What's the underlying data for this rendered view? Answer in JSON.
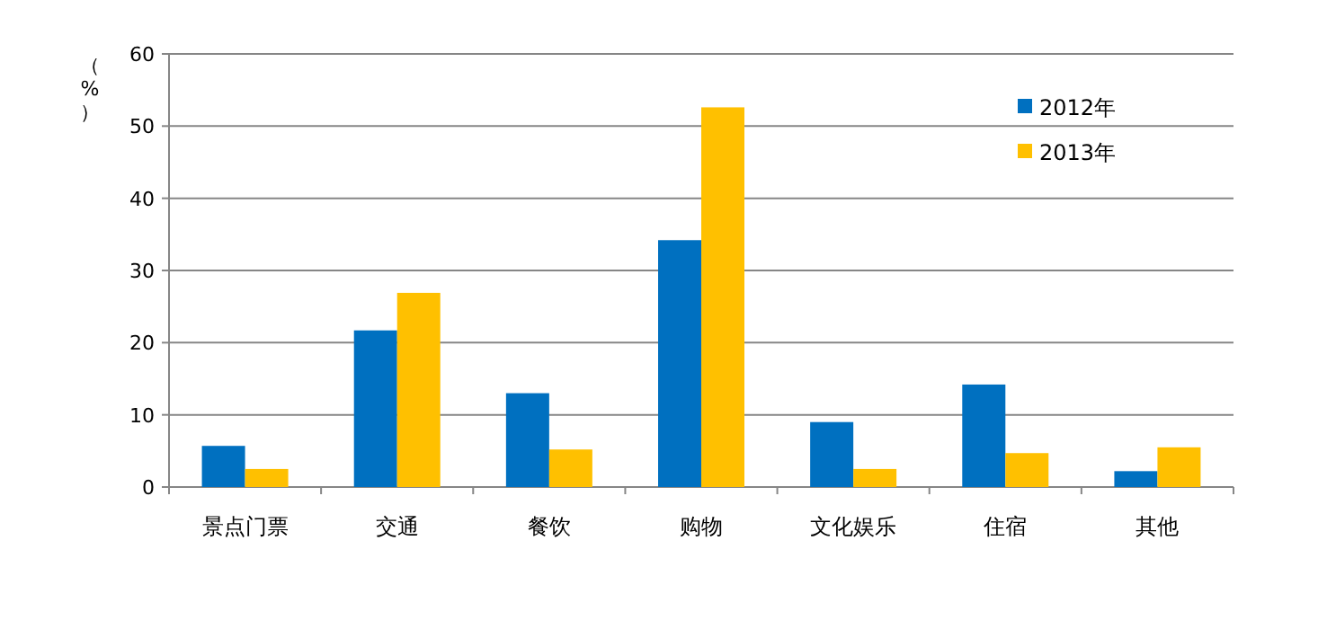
{
  "chart_data": {
    "type": "bar",
    "ylabel": "（%）",
    "categories": [
      "景点门票",
      "交通",
      "餐饮",
      "购物",
      "文化娱乐",
      "住宿",
      "其他"
    ],
    "series": [
      {
        "name": "2012年",
        "color": "#0070c0",
        "values": [
          5.7,
          21.7,
          13.0,
          34.2,
          9.0,
          14.2,
          2.2
        ]
      },
      {
        "name": "2013年",
        "color": "#ffc000",
        "values": [
          2.5,
          26.9,
          5.2,
          52.6,
          2.5,
          4.7,
          5.5
        ]
      }
    ],
    "ylim": [
      0,
      60
    ],
    "yticks": [
      0,
      10,
      20,
      30,
      40,
      50,
      60
    ],
    "grid": "y",
    "legend": "top right"
  }
}
